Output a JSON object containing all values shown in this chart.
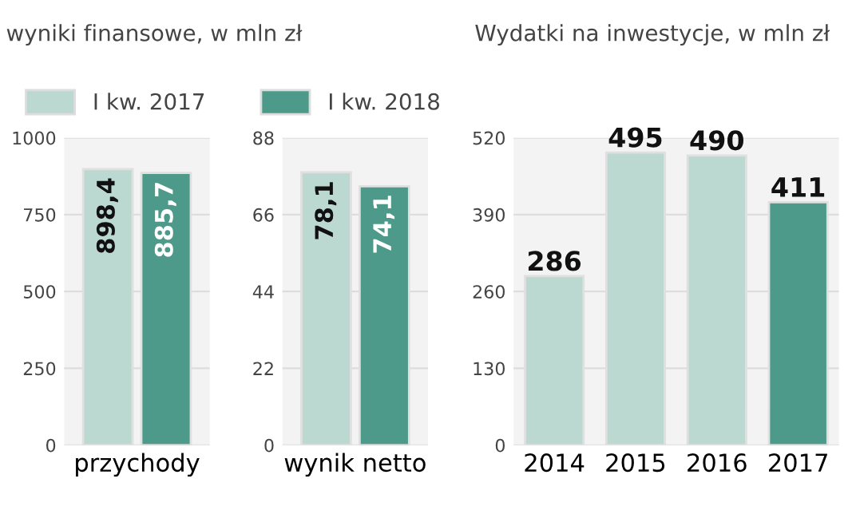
{
  "chart_data": [
    {
      "type": "bar",
      "title": "wyniki finansowe, w mln zł",
      "categories": [
        "przychody"
      ],
      "series": [
        {
          "name": "I kw. 2017",
          "color": "#bcd9d1",
          "values": [
            898.4
          ],
          "value_labels": [
            "898,4"
          ]
        },
        {
          "name": "I kw. 2018",
          "color": "#4e9a8a",
          "values": [
            885.7
          ],
          "value_labels": [
            "885,7"
          ]
        }
      ],
      "ylim": [
        0,
        1000
      ],
      "yticks": [
        0,
        250,
        500,
        750,
        1000
      ],
      "grid": "y",
      "legend": "top"
    },
    {
      "type": "bar",
      "categories": [
        "wynik netto"
      ],
      "series": [
        {
          "color": "#bcd9d1",
          "values": [
            78.1
          ],
          "value_labels": [
            "78,1"
          ]
        },
        {
          "color": "#4e9a8a",
          "values": [
            74.1
          ],
          "value_labels": [
            "74,1"
          ]
        }
      ],
      "ylim": [
        0,
        88
      ],
      "yticks": [
        0,
        22,
        44,
        66,
        88
      ],
      "grid": "y"
    },
    {
      "type": "bar",
      "title": "Wydatki na inwestycje, w mln zł",
      "categories": [
        "2014",
        "2015",
        "2016",
        "2017"
      ],
      "values": [
        286,
        495,
        490,
        411
      ],
      "colors": [
        "#bcd9d1",
        "#bcd9d1",
        "#bcd9d1",
        "#4e9a8a"
      ],
      "data_labels": true,
      "ylim": [
        0,
        520
      ],
      "yticks": [
        0,
        130,
        260,
        390,
        520
      ],
      "grid": "y"
    }
  ]
}
